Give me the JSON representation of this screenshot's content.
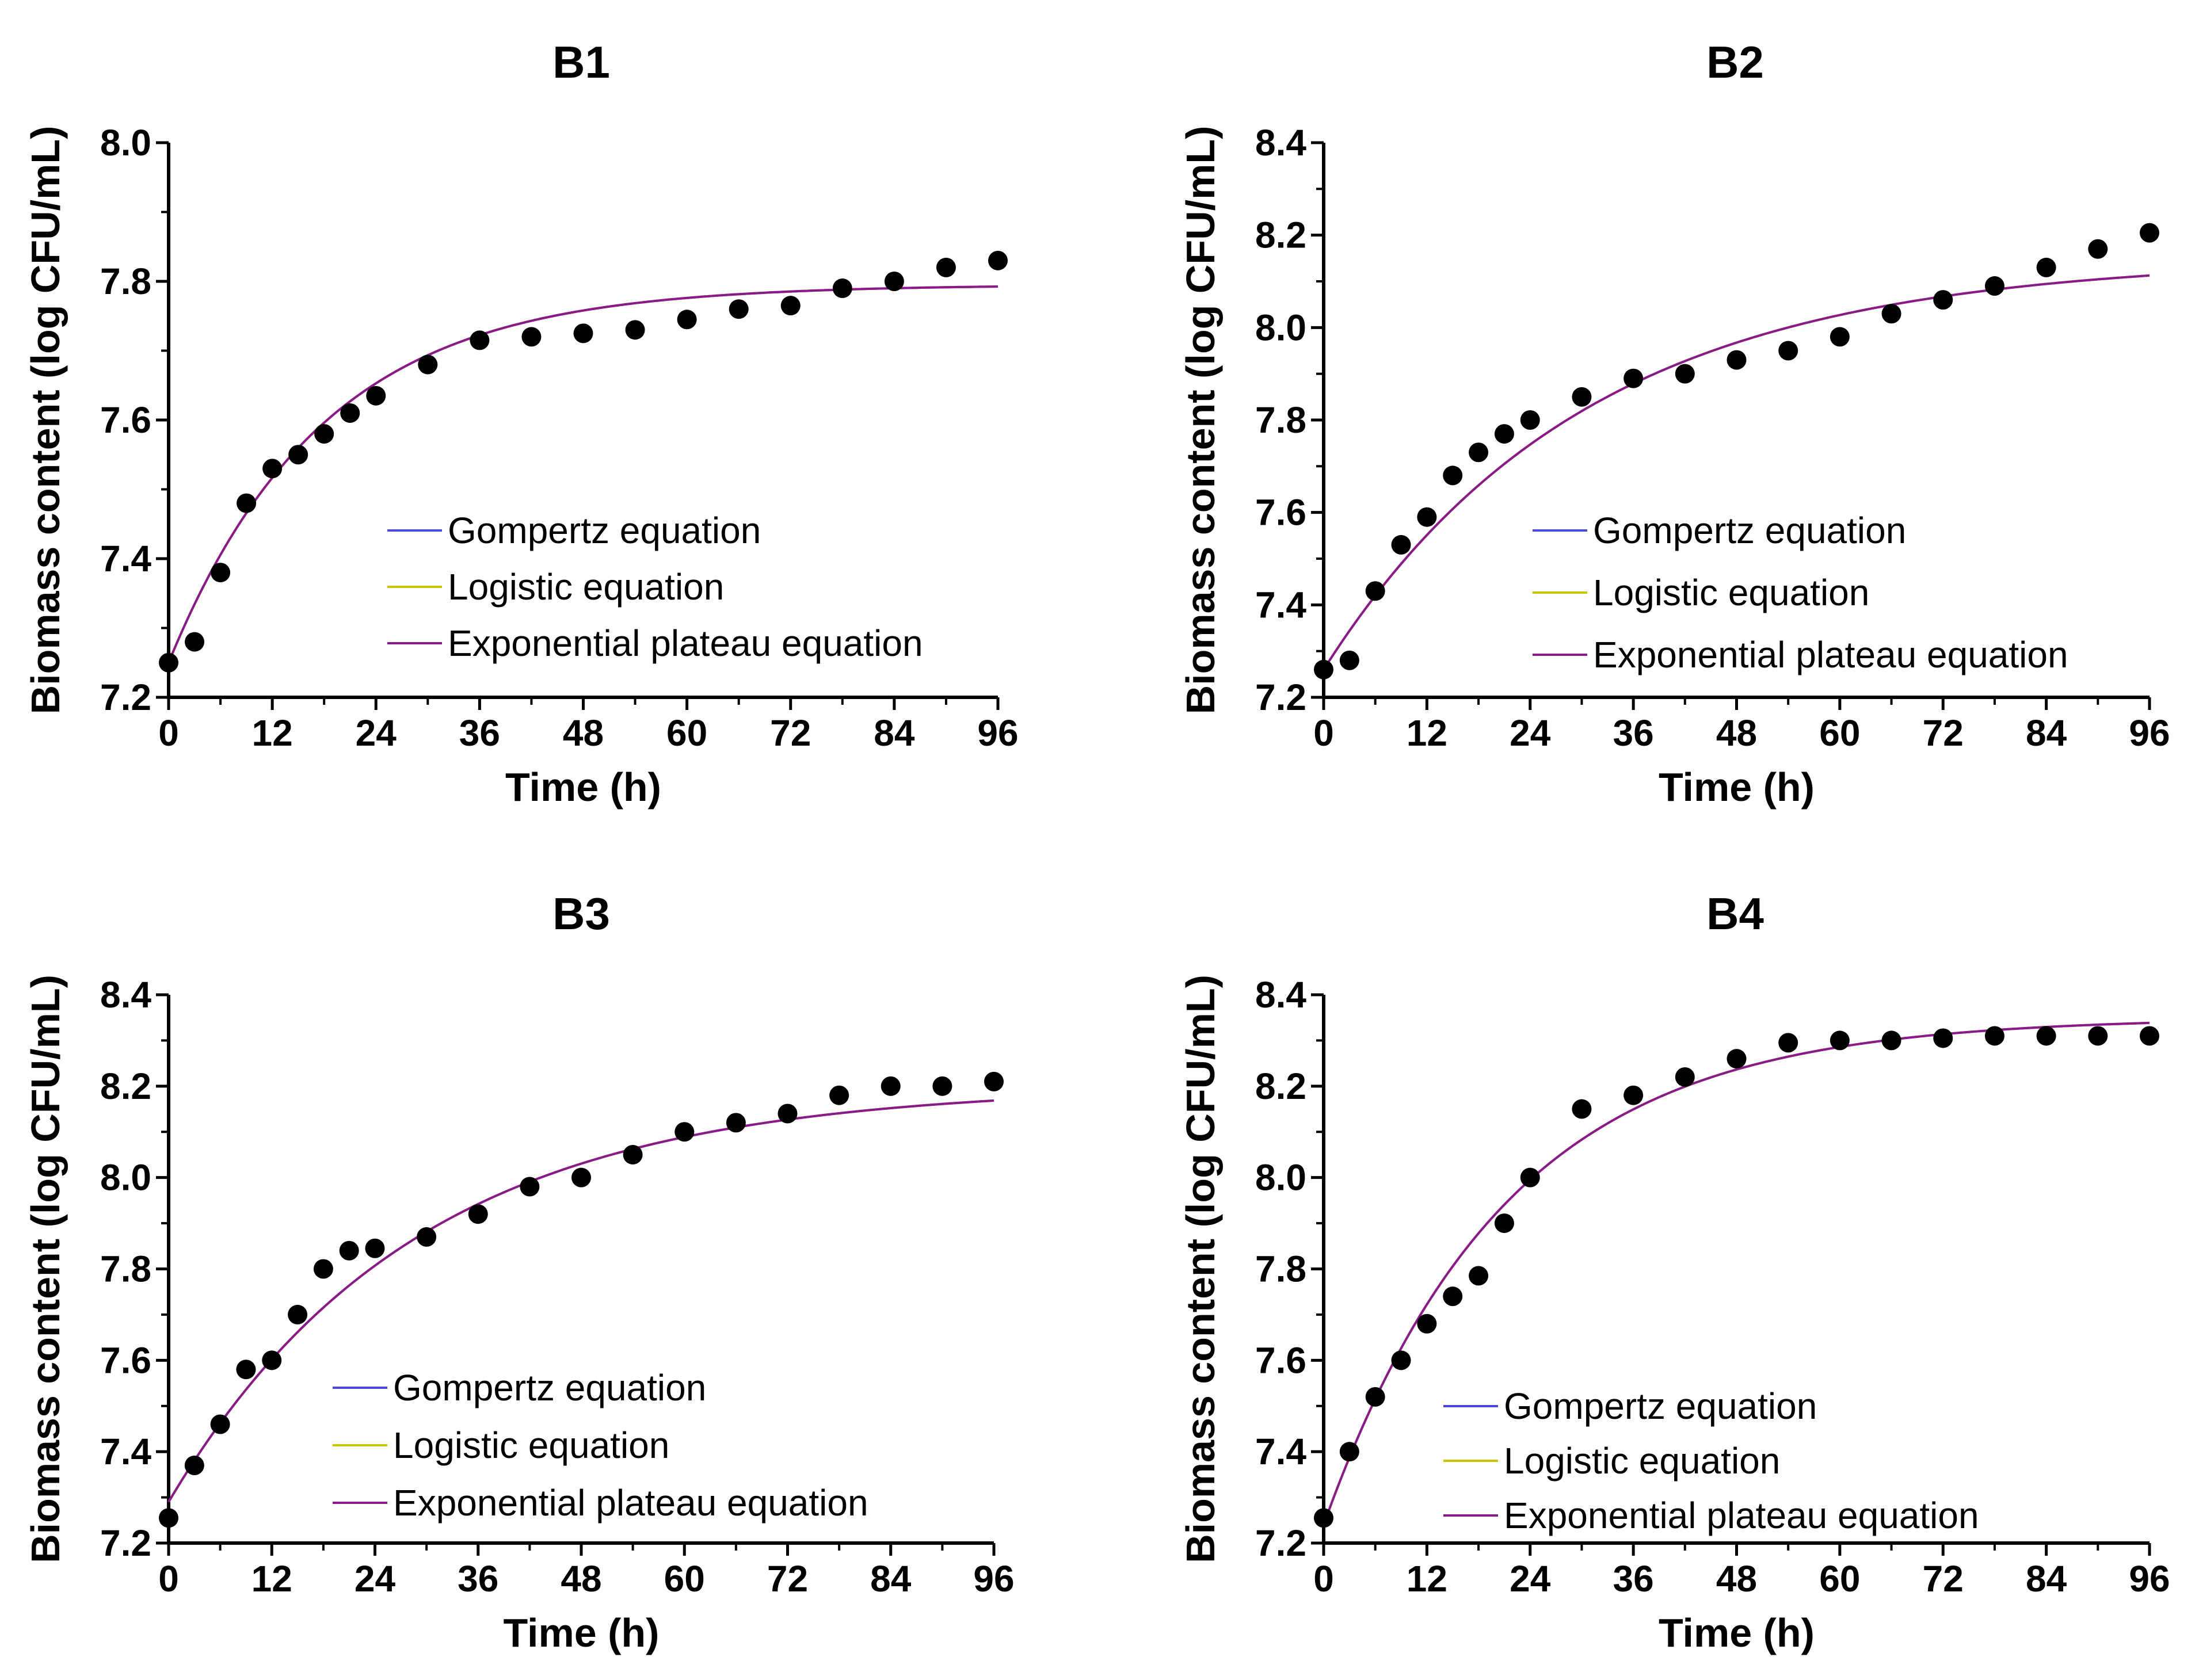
{
  "chart_data": [
    {
      "type": "scatter",
      "title": "B1",
      "xlabel": "Time (h)",
      "ylabel": "Biomass content (log CFU/mL)",
      "xlim": [
        0,
        96
      ],
      "ylim": [
        7.2,
        8.0
      ],
      "xticks": [
        "0",
        "12",
        "24",
        "36",
        "48",
        "60",
        "72",
        "84",
        "96"
      ],
      "yticks": [
        "7.2",
        "7.4",
        "7.6",
        "7.8",
        "8.0"
      ],
      "legend_position": "center-right",
      "observed": {
        "x": [
          0,
          3,
          6,
          9,
          12,
          15,
          18,
          21,
          24,
          30,
          36,
          42,
          48,
          54,
          60,
          66,
          72,
          78,
          84,
          90,
          96
        ],
        "y": [
          7.25,
          7.28,
          7.38,
          7.48,
          7.53,
          7.55,
          7.58,
          7.61,
          7.635,
          7.68,
          7.715,
          7.72,
          7.725,
          7.73,
          7.745,
          7.76,
          7.765,
          7.79,
          7.8,
          7.82,
          7.83
        ]
      },
      "series": [
        {
          "name": "Gompertz equation",
          "color": "#4a4ad8",
          "y0": 7.25,
          "ymax": 7.795,
          "k": 0.056
        },
        {
          "name": "Logistic equation",
          "color": "#c8c800",
          "y0": 7.25,
          "ymax": 7.795,
          "k": 0.056
        },
        {
          "name": "Exponential plateau equation",
          "color": "#8a1a8a",
          "y0": 7.25,
          "ymax": 7.795,
          "k": 0.056
        }
      ]
    },
    {
      "type": "scatter",
      "title": "B2",
      "xlabel": "Time (h)",
      "ylabel": "Biomass content (log CFU/mL)",
      "xlim": [
        0,
        96
      ],
      "ylim": [
        7.2,
        8.4
      ],
      "xticks": [
        "0",
        "12",
        "24",
        "36",
        "48",
        "60",
        "72",
        "84",
        "96"
      ],
      "yticks": [
        "7.2",
        "7.4",
        "7.6",
        "7.8",
        "8.0",
        "8.2",
        "8.4"
      ],
      "legend_position": "center-right",
      "observed": {
        "x": [
          0,
          3,
          6,
          9,
          12,
          15,
          18,
          21,
          24,
          30,
          36,
          42,
          48,
          54,
          60,
          66,
          72,
          78,
          84,
          90,
          96
        ],
        "y": [
          7.26,
          7.28,
          7.43,
          7.53,
          7.59,
          7.68,
          7.73,
          7.77,
          7.8,
          7.85,
          7.89,
          7.9,
          7.93,
          7.95,
          7.98,
          8.03,
          8.06,
          8.09,
          8.13,
          8.17,
          8.205
        ]
      },
      "series": [
        {
          "name": "Gompertz equation",
          "color": "#4a4ad8",
          "y0": 7.26,
          "ymax": 8.15,
          "k": 0.033
        },
        {
          "name": "Logistic equation",
          "color": "#c8c800",
          "y0": 7.26,
          "ymax": 8.15,
          "k": 0.033
        },
        {
          "name": "Exponential plateau equation",
          "color": "#8a1a8a",
          "y0": 7.26,
          "ymax": 8.15,
          "k": 0.033
        }
      ]
    },
    {
      "type": "scatter",
      "title": "B3",
      "xlabel": "Time (h)",
      "ylabel": "Biomass content (log CFU/mL)",
      "xlim": [
        0,
        96
      ],
      "ylim": [
        7.2,
        8.4
      ],
      "xticks": [
        "0",
        "12",
        "24",
        "36",
        "48",
        "60",
        "72",
        "84",
        "96"
      ],
      "yticks": [
        "7.2",
        "7.4",
        "7.6",
        "7.8",
        "8.0",
        "8.2",
        "8.4"
      ],
      "legend_position": "bottom-center",
      "observed": {
        "x": [
          0,
          3,
          6,
          9,
          12,
          15,
          18,
          21,
          24,
          30,
          36,
          42,
          48,
          54,
          60,
          66,
          72,
          78,
          84,
          90,
          96
        ],
        "y": [
          7.255,
          7.37,
          7.46,
          7.58,
          7.6,
          7.7,
          7.8,
          7.84,
          7.845,
          7.87,
          7.92,
          7.98,
          8.0,
          8.05,
          8.1,
          8.12,
          8.14,
          8.18,
          8.2,
          8.2,
          8.21
        ]
      },
      "series": [
        {
          "name": "Gompertz equation",
          "color": "#4a4ad8",
          "y0": 7.29,
          "ymax": 8.2,
          "k": 0.035
        },
        {
          "name": "Logistic equation",
          "color": "#c8c800",
          "y0": 7.29,
          "ymax": 8.2,
          "k": 0.035
        },
        {
          "name": "Exponential plateau equation",
          "color": "#8a1a8a",
          "y0": 7.29,
          "ymax": 8.2,
          "k": 0.035
        }
      ]
    },
    {
      "type": "scatter",
      "title": "B4",
      "xlabel": "Time (h)",
      "ylabel": "Biomass content (log CFU/mL)",
      "xlim": [
        0,
        96
      ],
      "ylim": [
        7.2,
        8.4
      ],
      "xticks": [
        "0",
        "12",
        "24",
        "36",
        "48",
        "60",
        "72",
        "84",
        "96"
      ],
      "yticks": [
        "7.2",
        "7.4",
        "7.6",
        "7.8",
        "8.0",
        "8.2",
        "8.4"
      ],
      "legend_position": "bottom-center",
      "observed": {
        "x": [
          0,
          3,
          6,
          9,
          12,
          15,
          18,
          21,
          24,
          30,
          36,
          42,
          48,
          54,
          60,
          66,
          72,
          78,
          84,
          90,
          96
        ],
        "y": [
          7.255,
          7.4,
          7.52,
          7.6,
          7.68,
          7.74,
          7.785,
          7.9,
          8.0,
          8.15,
          8.18,
          8.22,
          8.26,
          8.295,
          8.3,
          8.3,
          8.305,
          8.31,
          8.31,
          8.31,
          8.31
        ]
      },
      "series": [
        {
          "name": "Gompertz equation",
          "color": "#4a4ad8",
          "y0": 7.24,
          "ymax": 8.35,
          "k": 0.0475
        },
        {
          "name": "Logistic equation",
          "color": "#c8c800",
          "y0": 7.24,
          "ymax": 8.35,
          "k": 0.0475
        },
        {
          "name": "Exponential plateau equation",
          "color": "#8a1a8a",
          "y0": 7.24,
          "ymax": 8.35,
          "k": 0.0475
        }
      ]
    }
  ]
}
